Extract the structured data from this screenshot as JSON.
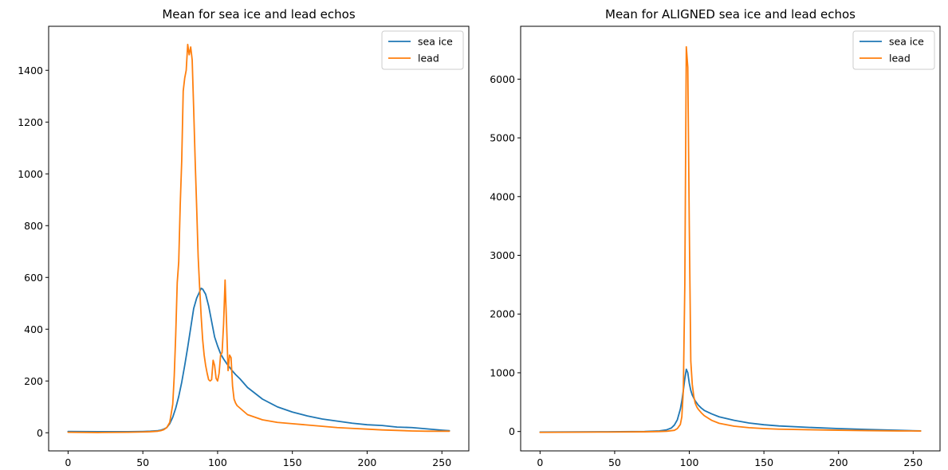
{
  "chart_data": [
    {
      "type": "line",
      "title": "Mean for sea ice and lead echos",
      "xlabel": "",
      "ylabel": "",
      "xlim": [
        -13,
        268
      ],
      "ylim": [
        -70,
        1570
      ],
      "xticks": [
        0,
        50,
        100,
        150,
        200,
        250
      ],
      "xtick_labels": [
        "0",
        "50",
        "100",
        "150",
        "200",
        "250"
      ],
      "yticks": [
        0,
        200,
        400,
        600,
        800,
        1000,
        1200,
        1400
      ],
      "ytick_labels": [
        "0",
        "200",
        "400",
        "600",
        "800",
        "1000",
        "1200",
        "1400"
      ],
      "grid": false,
      "legend_position": "top-right",
      "series": [
        {
          "name": "sea ice",
          "color": "#1f77b4",
          "x": [
            0,
            20,
            40,
            50,
            55,
            60,
            62,
            64,
            66,
            68,
            70,
            72,
            74,
            76,
            78,
            80,
            82,
            84,
            86,
            88,
            89,
            90,
            92,
            94,
            96,
            98,
            100,
            102,
            104,
            106,
            108,
            110,
            112,
            115,
            120,
            130,
            140,
            150,
            160,
            170,
            180,
            190,
            200,
            210,
            215,
            220,
            230,
            240,
            250,
            255
          ],
          "y": [
            5,
            4,
            4,
            5,
            6,
            8,
            10,
            14,
            20,
            35,
            60,
            95,
            140,
            195,
            260,
            330,
            405,
            480,
            520,
            545,
            558,
            555,
            535,
            490,
            430,
            370,
            335,
            305,
            285,
            268,
            253,
            238,
            225,
            208,
            175,
            130,
            100,
            80,
            65,
            53,
            45,
            37,
            31,
            28,
            25,
            22,
            20,
            15,
            10,
            8
          ]
        },
        {
          "name": "lead",
          "color": "#ff7f0e",
          "x": [
            0,
            20,
            40,
            50,
            55,
            60,
            62,
            64,
            66,
            68,
            70,
            71,
            72,
            73,
            74,
            75,
            76,
            77,
            78,
            79,
            80,
            81,
            82,
            83,
            84,
            85,
            86,
            87,
            88,
            89,
            90,
            91,
            92,
            93,
            94,
            95,
            96,
            97,
            98,
            99,
            100,
            101,
            102,
            103,
            104,
            105,
            106,
            107,
            108,
            109,
            110,
            111,
            112,
            113,
            114,
            115,
            116,
            117,
            118,
            120,
            125,
            130,
            140,
            150,
            160,
            170,
            180,
            190,
            200,
            210,
            220,
            230,
            240,
            250,
            255
          ],
          "y": [
            2,
            1,
            2,
            3,
            4,
            6,
            8,
            12,
            20,
            40,
            110,
            220,
            380,
            580,
            660,
            880,
            1050,
            1320,
            1370,
            1400,
            1500,
            1460,
            1490,
            1440,
            1250,
            1050,
            870,
            680,
            560,
            450,
            360,
            300,
            260,
            230,
            205,
            200,
            205,
            280,
            260,
            210,
            200,
            230,
            300,
            310,
            420,
            590,
            420,
            240,
            300,
            290,
            180,
            130,
            115,
            105,
            100,
            95,
            90,
            85,
            80,
            70,
            60,
            50,
            40,
            35,
            30,
            25,
            20,
            17,
            14,
            11,
            9,
            7,
            6,
            6,
            6
          ]
        }
      ]
    },
    {
      "type": "line",
      "title": "Mean for ALIGNED sea ice and lead echos",
      "xlabel": "",
      "ylabel": "",
      "xlim": [
        -13,
        268
      ],
      "ylim": [
        -330,
        6900
      ],
      "xticks": [
        0,
        50,
        100,
        150,
        200,
        250
      ],
      "xtick_labels": [
        "0",
        "50",
        "100",
        "150",
        "200",
        "250"
      ],
      "yticks": [
        0,
        1000,
        2000,
        3000,
        4000,
        5000,
        6000
      ],
      "ytick_labels": [
        "0",
        "1000",
        "2000",
        "3000",
        "4000",
        "5000",
        "6000"
      ],
      "grid": false,
      "legend_position": "top-right",
      "series": [
        {
          "name": "sea ice",
          "color": "#1f77b4",
          "x": [
            0,
            40,
            70,
            80,
            85,
            88,
            90,
            92,
            94,
            95,
            96,
            97,
            98,
            99,
            100,
            101,
            102,
            104,
            106,
            108,
            110,
            115,
            120,
            130,
            140,
            150,
            160,
            180,
            200,
            220,
            240,
            255
          ],
          "y": [
            -10,
            -5,
            0,
            10,
            30,
            60,
            110,
            200,
            380,
            520,
            700,
            900,
            1060,
            1000,
            820,
            700,
            620,
            520,
            450,
            400,
            360,
            300,
            250,
            190,
            145,
            115,
            95,
            70,
            50,
            35,
            20,
            10
          ]
        },
        {
          "name": "lead",
          "color": "#ff7f0e",
          "x": [
            0,
            40,
            70,
            80,
            85,
            90,
            92,
            94,
            95,
            96,
            97,
            98,
            99,
            100,
            101,
            102,
            103,
            104,
            105,
            106,
            108,
            110,
            115,
            120,
            130,
            140,
            150,
            160,
            180,
            200,
            220,
            240,
            255
          ],
          "y": [
            -15,
            -10,
            -5,
            0,
            5,
            20,
            50,
            120,
            250,
            700,
            2500,
            6550,
            6200,
            3500,
            1200,
            800,
            600,
            480,
            420,
            380,
            320,
            270,
            190,
            140,
            90,
            65,
            50,
            40,
            30,
            22,
            15,
            10,
            8
          ]
        }
      ]
    }
  ]
}
